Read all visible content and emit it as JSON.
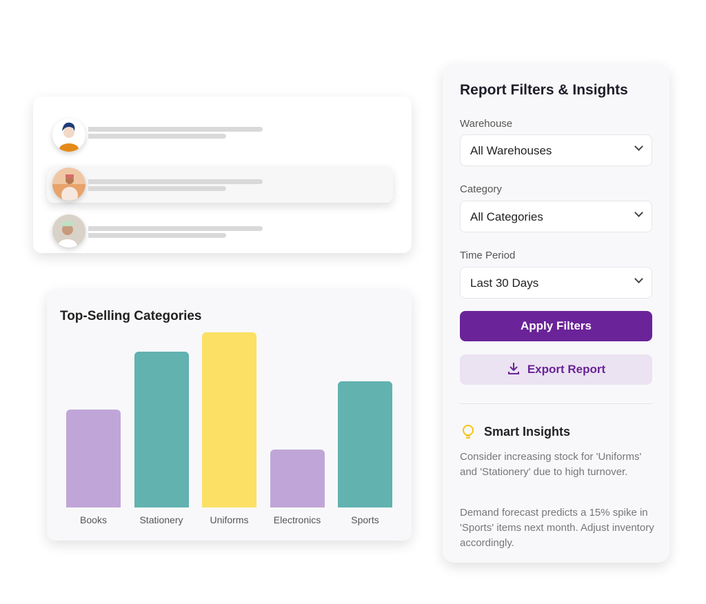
{
  "users_card": {
    "rows": 3
  },
  "chart_data": {
    "type": "bar",
    "title": "Top-Selling Categories",
    "categories": [
      "Books",
      "Stationery",
      "Uniforms",
      "Electronics",
      "Sports"
    ],
    "values": [
      56,
      89,
      100,
      33,
      72
    ],
    "colors": [
      "#c0a6d8",
      "#62b2b0",
      "#fbe065",
      "#c0a6d8",
      "#62b2b0"
    ],
    "grid": false,
    "axes_shown": false
  },
  "panel": {
    "title": "Report Filters & Insights",
    "warehouse": {
      "label": "Warehouse",
      "value": "All Warehouses"
    },
    "category": {
      "label": "Category",
      "value": "All Categories"
    },
    "period": {
      "label": "Time Period",
      "value": "Last 30 Days"
    },
    "apply_label": "Apply Filters",
    "export_label": "Export Report",
    "insights_title": "Smart Insights",
    "insights": [
      "Consider increasing stock for 'Uniforms' and 'Stationery' due to high turnover.",
      "Demand forecast predicts a 15% spike in 'Sports' items next month. Adjust inventory accordingly."
    ],
    "accent": "#6a2398"
  }
}
